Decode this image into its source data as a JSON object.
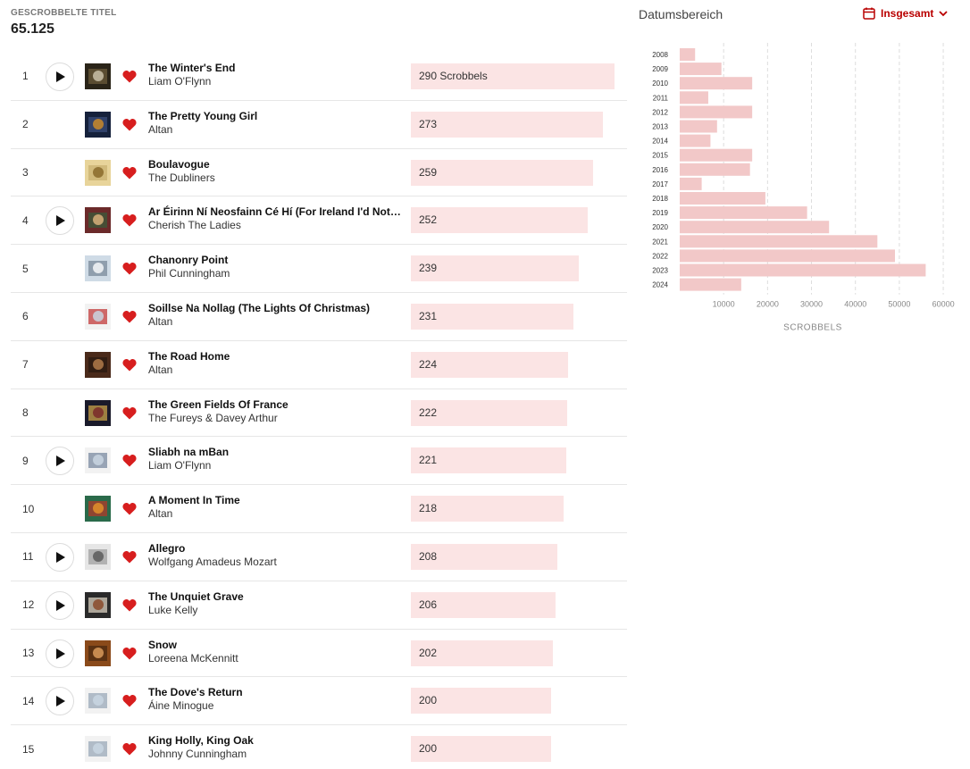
{
  "stats": {
    "label": "GESCROBBELTE TITEL",
    "value": "65.125"
  },
  "tracks": [
    {
      "rank": "1",
      "title": "The Winter's End",
      "artist": "Liam O'Flynn",
      "scrobbles": 290,
      "scrobble_label": "290 Scrobbels",
      "playable": true,
      "loved": true,
      "cover": [
        "#2a2418",
        "#c9c0a8",
        "#6b5a3a"
      ]
    },
    {
      "rank": "2",
      "title": "The Pretty Young Girl",
      "artist": "Altan",
      "scrobbles": 273,
      "scrobble_label": "273",
      "playable": false,
      "loved": true,
      "cover": [
        "#15213b",
        "#c98a2a",
        "#3a4c7a"
      ]
    },
    {
      "rank": "3",
      "title": "Boulavogue",
      "artist": "The Dubliners",
      "scrobbles": 259,
      "scrobble_label": "259",
      "playable": false,
      "loved": true,
      "cover": [
        "#e8d49a",
        "#8a6a2a",
        "#c9b270"
      ]
    },
    {
      "rank": "4",
      "title": "Ar Éirinn Ní Neosfainn Cé Hí (For Ireland I'd Not Tell Her Name)",
      "artist": "Cherish The Ladies",
      "scrobbles": 252,
      "scrobble_label": "252",
      "playable": true,
      "loved": true,
      "cover": [
        "#6b2a2a",
        "#d9b07a",
        "#3a5a3a"
      ]
    },
    {
      "rank": "5",
      "title": "Chanonry Point",
      "artist": "Phil Cunningham",
      "scrobbles": 239,
      "scrobble_label": "239",
      "playable": false,
      "loved": true,
      "cover": [
        "#cfdbe6",
        "#f4f6f8",
        "#7a8a9a"
      ]
    },
    {
      "rank": "6",
      "title": "Soillse Na Nollag (The Lights Of Christmas)",
      "artist": "Altan",
      "scrobbles": 231,
      "scrobble_label": "231",
      "playable": false,
      "loved": true,
      "cover": [
        "#f2f2f2",
        "#c9d6e2",
        "#c23a3a"
      ]
    },
    {
      "rank": "7",
      "title": "The Road Home",
      "artist": "Altan",
      "scrobbles": 224,
      "scrobble_label": "224",
      "playable": false,
      "loved": true,
      "cover": [
        "#4a2a1a",
        "#b07a4a",
        "#2a1a10"
      ]
    },
    {
      "rank": "8",
      "title": "The Green Fields Of France",
      "artist": "The Fureys & Davey Arthur",
      "scrobbles": 222,
      "scrobble_label": "222",
      "playable": false,
      "loved": true,
      "cover": [
        "#1a1a2a",
        "#7a2a2a",
        "#c9a24a"
      ]
    },
    {
      "rank": "9",
      "title": "Sliabh na mBan",
      "artist": "Liam O'Flynn",
      "scrobbles": 221,
      "scrobble_label": "221",
      "playable": true,
      "loved": true,
      "cover": [
        "#f2f2f2",
        "#c9d6e2",
        "#7a8aa0"
      ]
    },
    {
      "rank": "10",
      "title": "A Moment In Time",
      "artist": "Altan",
      "scrobbles": 218,
      "scrobble_label": "218",
      "playable": false,
      "loved": true,
      "cover": [
        "#2a6a4a",
        "#e0902a",
        "#b03a2a"
      ]
    },
    {
      "rank": "11",
      "title": "Allegro",
      "artist": "Wolfgang Amadeus Mozart",
      "scrobbles": 208,
      "scrobble_label": "208",
      "playable": true,
      "loved": true,
      "cover": [
        "#e6e6e6",
        "#5a5a5a",
        "#a0a0a0"
      ]
    },
    {
      "rank": "12",
      "title": "The Unquiet Grave",
      "artist": "Luke Kelly",
      "scrobbles": 206,
      "scrobble_label": "206",
      "playable": true,
      "loved": true,
      "cover": [
        "#2a2a2a",
        "#8a4a2a",
        "#d9d0c0"
      ]
    },
    {
      "rank": "13",
      "title": "Snow",
      "artist": "Loreena McKennitt",
      "scrobbles": 202,
      "scrobble_label": "202",
      "playable": true,
      "loved": true,
      "cover": [
        "#8a4a1a",
        "#d99a5a",
        "#4a2a10"
      ]
    },
    {
      "rank": "14",
      "title": "The Dove's Return",
      "artist": "Áine Minogue",
      "scrobbles": 200,
      "scrobble_label": "200",
      "playable": true,
      "loved": true,
      "cover": [
        "#f2f2f2",
        "#c9d6e2",
        "#9aa8b8"
      ]
    },
    {
      "rank": "15",
      "title": "King Holly, King Oak",
      "artist": "Johnny Cunningham",
      "scrobbles": 200,
      "scrobble_label": "200",
      "playable": false,
      "loved": true,
      "cover": [
        "#f2f2f2",
        "#c9d6e2",
        "#9aa8b8"
      ]
    }
  ],
  "date_range": {
    "title": "Datumsbereich",
    "selected": "Insgesamt"
  },
  "colors": {
    "accent": "#b90000",
    "heart": "#d71e1e",
    "bar": "#fbe4e4",
    "chart_bar": "#f2c8c8"
  },
  "icons": {
    "play": "play-icon",
    "heart": "heart-icon",
    "calendar": "calendar-icon",
    "chevron": "chevron-down-icon"
  },
  "chart_data": {
    "type": "bar",
    "orientation": "horizontal",
    "categories": [
      "2008",
      "2009",
      "2010",
      "2011",
      "2012",
      "2013",
      "2014",
      "2015",
      "2016",
      "2017",
      "2018",
      "2019",
      "2020",
      "2021",
      "2022",
      "2023",
      "2024"
    ],
    "values": [
      3500,
      9500,
      16500,
      6500,
      16500,
      8500,
      7000,
      16500,
      16000,
      5000,
      19500,
      29000,
      34000,
      45000,
      49000,
      56000,
      14000
    ],
    "xlabel": "SCROBBELS",
    "xticks": [
      "10000",
      "20000",
      "30000",
      "40000",
      "50000",
      "60000"
    ],
    "xlim": [
      0,
      61000
    ],
    "grid": true
  }
}
